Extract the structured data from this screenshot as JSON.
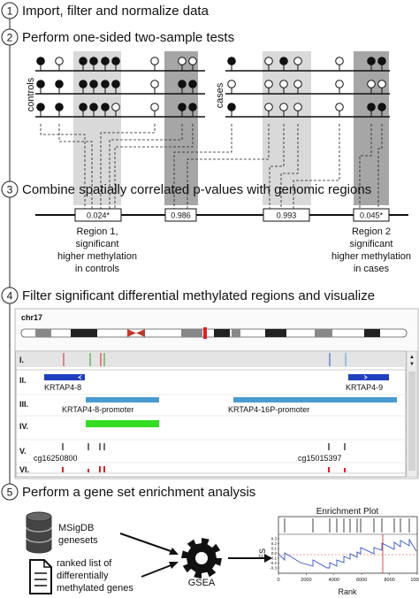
{
  "steps": [
    {
      "num": "1",
      "title": "Import, filter and normalize data"
    },
    {
      "num": "2",
      "title": "Perform one-sided two-sample tests"
    },
    {
      "num": "3",
      "title": "Combine spatially correlated p-values with genomic regions"
    },
    {
      "num": "4",
      "title": "Filter significant differential methylated regions and visualize"
    },
    {
      "num": "5",
      "title": "Perform a gene set enrichment analysis"
    }
  ],
  "groups": {
    "controls": "controls",
    "cases": "cases"
  },
  "regions": [
    {
      "pvalue": "0.024*",
      "label": [
        "Region 1,",
        "significant",
        "higher methylation",
        "in controls"
      ]
    },
    {
      "pvalue": "0.986"
    },
    {
      "pvalue": "0.993"
    },
    {
      "pvalue": "0.045*",
      "label": [
        "Region 2",
        "significant",
        "higher methylation",
        "in cases"
      ]
    }
  ],
  "browser": {
    "chromosome": "chr17",
    "tracks": [
      "I.",
      "II.",
      "III.",
      "IV.",
      "V.",
      "VI."
    ],
    "genes": [
      "KRTAP4-8",
      "KRTAP4-9"
    ],
    "promoters": [
      "KRTAP4-8-promoter",
      "KRTAP4-16P-promoter"
    ],
    "cpgs": [
      "cg16250800",
      "cg15015397"
    ],
    "scroll_up": "▲",
    "scroll_down": "▼"
  },
  "gsea": {
    "database": [
      "MSigDB",
      "genesets"
    ],
    "ranked_list": [
      "ranked list of",
      "differentially",
      "methylated genes"
    ],
    "tool": "GSEA",
    "plot_title": "Enrichment Plot",
    "ylabel": "ES",
    "xlabel": "Rank",
    "xticks": [
      "0",
      "2000",
      "4000",
      "6000",
      "8000",
      "10000"
    ],
    "yticks": [
      "0.3",
      "0.2",
      "0.1",
      "0.0",
      "-0.1",
      "-0.2",
      "-0.3"
    ]
  },
  "colors": {
    "region_light": "#d9d9d9",
    "region_dark": "#a6a6a6",
    "gene_blue": "#1f3fbf",
    "promoter_blue": "#4a9bd1",
    "promoter_green": "#33dd22",
    "marker_red": "#e02020",
    "es_line": "#3355cc"
  }
}
